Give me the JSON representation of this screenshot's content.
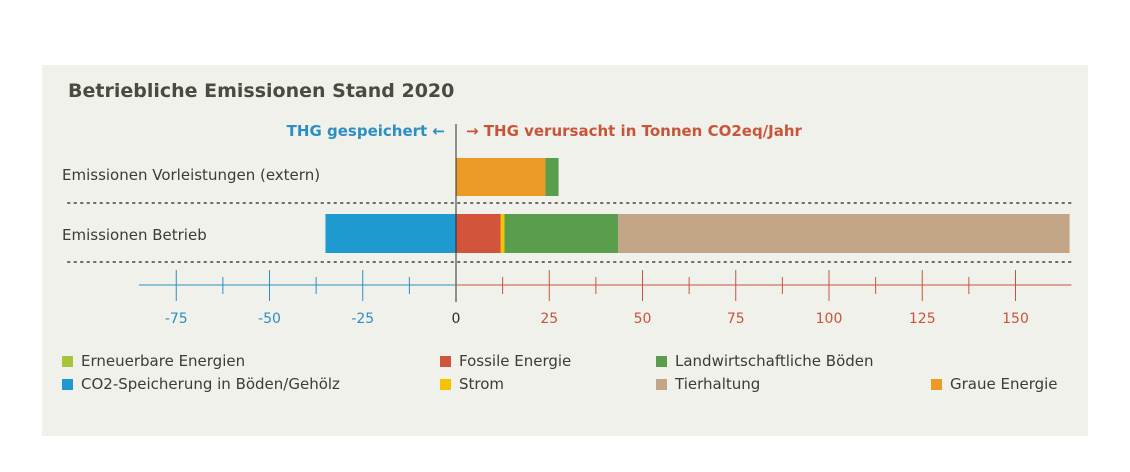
{
  "chart_data": {
    "type": "bar",
    "orientation": "horizontal-stacked",
    "title": "Betriebliche Emissionen Stand 2020",
    "left_header": "THG gespeichert ←",
    "right_header": "→ THG verursacht in Tonnen CO2eq/Jahr",
    "categories": [
      "Emissionen Vorleistungen (extern)",
      "Emissionen Betrieb"
    ],
    "xlim": [
      -85,
      165
    ],
    "x_ticks": [
      -75,
      -50,
      -25,
      0,
      25,
      50,
      75,
      100,
      125,
      150
    ],
    "x_tick_labels": [
      "-75",
      "-50",
      "-25",
      "0",
      "25",
      "50",
      "75",
      "100",
      "125",
      "150"
    ],
    "x_minor_ticks": [
      -62.5,
      -37.5,
      -12.5,
      12.5,
      37.5,
      62.5,
      87.5,
      112.5,
      137.5
    ],
    "negative_color": "#2d8ec4",
    "positive_color": "#c8553a",
    "series": [
      {
        "name": "Erneuerbare Energien",
        "color": "#a8c43a",
        "values": [
          0,
          0
        ]
      },
      {
        "name": "CO2-Speicherung in Böden/Gehölz",
        "color": "#1e9ad0",
        "values": [
          0,
          -35
        ]
      },
      {
        "name": "Fossile Energie",
        "color": "#d2543a",
        "values": [
          0,
          12
        ]
      },
      {
        "name": "Strom",
        "color": "#f5c400",
        "values": [
          0,
          1
        ]
      },
      {
        "name": "Landwirtschaftliche Böden",
        "color": "#5a9d4c",
        "values": [
          3.5,
          30.5
        ]
      },
      {
        "name": "Tierhaltung",
        "color": "#c1a586",
        "values": [
          0,
          121
        ]
      },
      {
        "name": "Graue Energie",
        "color": "#ec9a26",
        "values": [
          24,
          0
        ]
      }
    ],
    "stack_order_positive": [
      [
        "Graue Energie",
        "Landwirtschaftliche Böden"
      ],
      [
        "Fossile Energie",
        "Strom",
        "Landwirtschaftliche Böden",
        "Tierhaltung"
      ]
    ],
    "legend": [
      {
        "label": "Erneuerbare Energien",
        "color": "#a8c43a"
      },
      {
        "label": "Fossile Energie",
        "color": "#d2543a"
      },
      {
        "label": "Landwirtschaftliche Böden",
        "color": "#5a9d4c"
      },
      {
        "label": "CO2-Speicherung in Böden/Gehölz",
        "color": "#1e9ad0"
      },
      {
        "label": "Strom",
        "color": "#f5c400"
      },
      {
        "label": "Tierhaltung",
        "color": "#c1a586"
      },
      {
        "label": "Graue Energie",
        "color": "#ec9a26"
      }
    ]
  }
}
